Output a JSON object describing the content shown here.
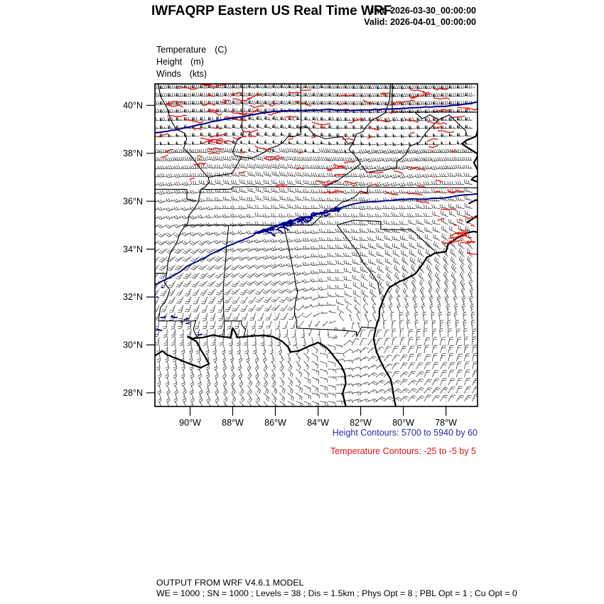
{
  "header": {
    "title": "IWFAQRP Eastern US Real Time WRF",
    "init_label": "Init: 2026-03-30_00:00:00",
    "valid_label": "Valid: 2026-04-01_00:00:00"
  },
  "legend": {
    "lines": [
      {
        "name": "Temperature",
        "unit": "(C)"
      },
      {
        "name": "Height",
        "unit": "(m)"
      },
      {
        "name": "Winds",
        "unit": "(kts)"
      }
    ]
  },
  "axes": {
    "lat_ticks": [
      {
        "label": "40°N",
        "value": 40
      },
      {
        "label": "38°N",
        "value": 38
      },
      {
        "label": "36°N",
        "value": 36
      },
      {
        "label": "34°N",
        "value": 34
      },
      {
        "label": "32°N",
        "value": 32
      },
      {
        "label": "30°N",
        "value": 30
      },
      {
        "label": "28°N",
        "value": 28
      }
    ],
    "lon_ticks": [
      {
        "label": "90°W",
        "value": -90
      },
      {
        "label": "88°W",
        "value": -88
      },
      {
        "label": "86°W",
        "value": -86
      },
      {
        "label": "84°W",
        "value": -84
      },
      {
        "label": "82°W",
        "value": -82
      },
      {
        "label": "80°W",
        "value": -80
      },
      {
        "label": "78°W",
        "value": -78
      }
    ]
  },
  "captions": {
    "height": "Height Contours: 5700 to 5940 by 60",
    "temperature": "Temperature Contours: -25 to -5 by 5"
  },
  "footer": {
    "line1": "OUTPUT FROM WRF V4.6.1 MODEL",
    "line2": "WE = 1000 ; SN = 1000 ; Levels = 38 ; Dis = 1.5km ; Phys Opt = 8 ; PBL Opt = 1 ; Cu Opt = 0"
  },
  "colors": {
    "height_contour": "#00008b",
    "height_caption": "#2a2aa8",
    "temperature_contour": "#e41212",
    "temperature_caption": "#e41212",
    "barb": "#2f2f2f",
    "border": "#000000",
    "grid": "#d2d2d2",
    "frame": "#000000"
  },
  "map_data": {
    "type": "weather-map",
    "model": "WRF V4.6.1",
    "region": "Eastern US",
    "fields": [
      {
        "name": "Temperature",
        "units": "C",
        "style": "contours",
        "min": -25,
        "max": -5,
        "interval": 5,
        "color": "red"
      },
      {
        "name": "Height",
        "units": "m",
        "style": "contours",
        "min": 5700,
        "max": 5940,
        "interval": 60,
        "color": "navy"
      },
      {
        "name": "Winds",
        "units": "kts",
        "style": "barbs",
        "color": "dark-gray"
      }
    ],
    "extent": {
      "lon_min": -91.65,
      "lon_max": -76.52,
      "lat_min": 27.43,
      "lat_max": 40.9
    }
  }
}
